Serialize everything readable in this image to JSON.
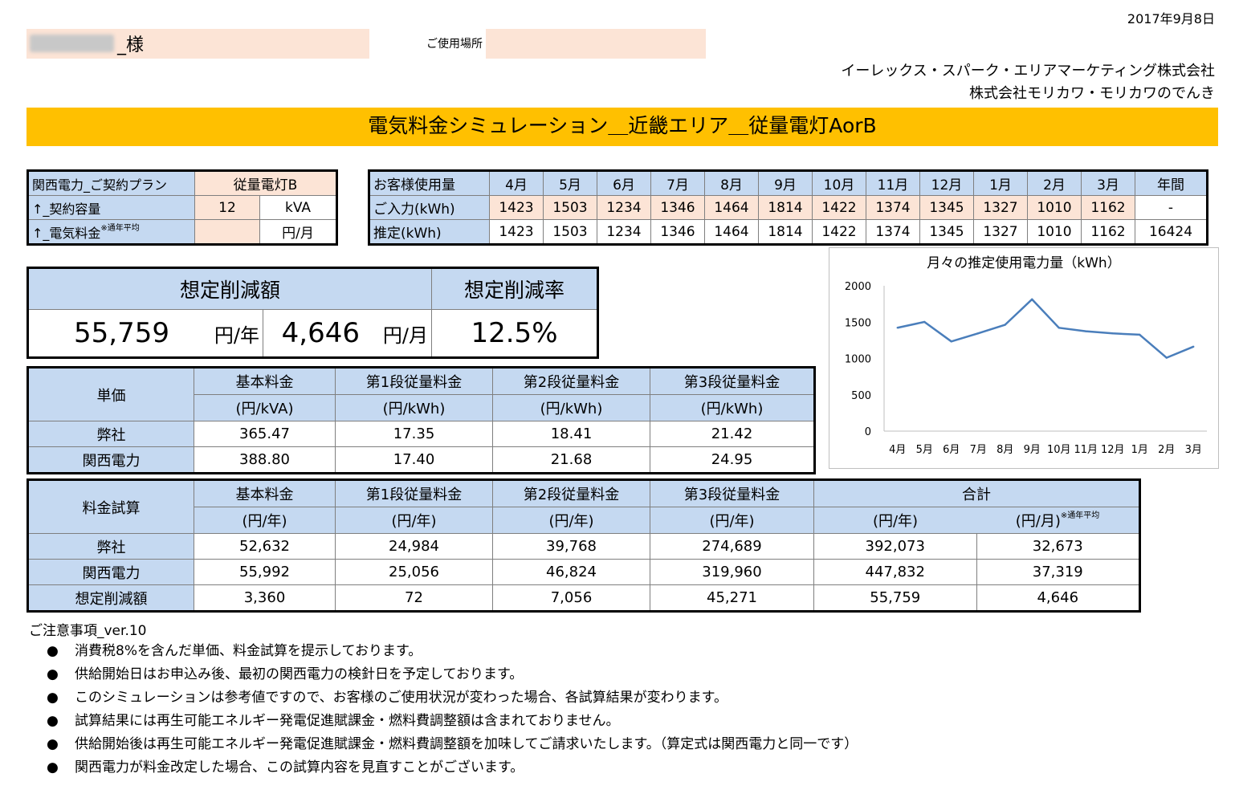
{
  "header": {
    "date": "2017年9月8日",
    "customer_suffix": "_様",
    "place_label": "ご使用場所",
    "company_1": "イーレックス・スパーク・エリアマーケティング株式会社",
    "company_2": "株式会社モリカワ・モリカワのでんき",
    "banner_title": "電気料金シミュレーション＿近畿エリア＿従量電灯AorB"
  },
  "plan": {
    "row1_label": "関西電力_ご契約プラン",
    "row1_value": "従量電灯B",
    "row2_label": "↑_契約容量",
    "row2_value": "12",
    "row2_unit": "kVA",
    "row3_label": "↑_電気料金",
    "row3_note": "※通年平均",
    "row3_unit": "円/月"
  },
  "usage": {
    "header_label": "お客様使用量",
    "months": [
      "4月",
      "5月",
      "6月",
      "7月",
      "8月",
      "9月",
      "10月",
      "11月",
      "12月",
      "1月",
      "2月",
      "3月"
    ],
    "annual_label": "年間",
    "input_label": "ご入力(kWh)",
    "input_values": [
      "1423",
      "1503",
      "1234",
      "1346",
      "1464",
      "1814",
      "1422",
      "1374",
      "1345",
      "1327",
      "1010",
      "1162"
    ],
    "input_annual": "-",
    "est_label": "推定(kWh)",
    "est_values": [
      "1423",
      "1503",
      "1234",
      "1346",
      "1464",
      "1814",
      "1422",
      "1374",
      "1345",
      "1327",
      "1010",
      "1162"
    ],
    "est_annual": "16424"
  },
  "savings": {
    "amount_header": "想定削減額",
    "rate_header": "想定削減率",
    "yearly": "55,759",
    "yearly_unit": "円/年",
    "monthly": "4,646",
    "monthly_unit": "円/月",
    "rate": "12.5%"
  },
  "unit_price": {
    "corner": "単価",
    "columns": [
      {
        "name": "基本料金",
        "unit": "(円/kVA)"
      },
      {
        "name": "第1段従量料金",
        "unit": "(円/kWh)"
      },
      {
        "name": "第2段従量料金",
        "unit": "(円/kWh)"
      },
      {
        "name": "第3段従量料金",
        "unit": "(円/kWh)"
      }
    ],
    "rows": [
      {
        "label": "弊社",
        "values": [
          "365.47",
          "17.35",
          "18.41",
          "21.42"
        ]
      },
      {
        "label": "関西電力",
        "values": [
          "388.80",
          "17.40",
          "21.68",
          "24.95"
        ]
      }
    ]
  },
  "calc": {
    "corner": "料金試算",
    "columns": [
      {
        "name": "基本料金",
        "unit": "(円/年)"
      },
      {
        "name": "第1段従量料金",
        "unit": "(円/年)"
      },
      {
        "name": "第2段従量料金",
        "unit": "(円/年)"
      },
      {
        "name": "第3段従量料金",
        "unit": "(円/年)"
      }
    ],
    "total_label": "合計",
    "total_unit_year": "(円/年)",
    "total_unit_month": "(円/月)",
    "total_note": "※通年平均",
    "rows": [
      {
        "label": "弊社",
        "values": [
          "52,632",
          "24,984",
          "39,768",
          "274,689",
          "392,073",
          "32,673"
        ]
      },
      {
        "label": "関西電力",
        "values": [
          "55,992",
          "25,056",
          "46,824",
          "319,960",
          "447,832",
          "37,319"
        ]
      },
      {
        "label": "想定削減額",
        "values": [
          "3,360",
          "72",
          "7,056",
          "45,271",
          "55,759",
          "4,646"
        ]
      }
    ]
  },
  "notes": {
    "title": "ご注意事項_ver.10",
    "bullet": "●",
    "items": [
      "消費税8%を含んだ単価、料金試算を提示しております。",
      "供給開始日はお申込み後、最初の関西電力の検針日を予定しております。",
      "このシミュレーションは参考値ですので、お客様のご使用状況が変わった場合、各試算結果が変わります。",
      "試算結果には再生可能エネルギー発電促進賦課金・燃料費調整額は含まれておりません。",
      "供給開始後は再生可能エネルギー発電促進賦課金・燃料費調整額を加味してご請求いたします。（算定式は関西電力と同一です）",
      "関西電力が料金改定した場合、この試算内容を見直すことがございます。"
    ]
  },
  "chart_data": {
    "type": "line",
    "title": "月々の推定使用電力量（kWh）",
    "categories": [
      "4月",
      "5月",
      "6月",
      "7月",
      "8月",
      "9月",
      "10月",
      "11月",
      "12月",
      "1月",
      "2月",
      "3月"
    ],
    "values": [
      1423,
      1503,
      1234,
      1346,
      1464,
      1814,
      1422,
      1374,
      1345,
      1327,
      1010,
      1162
    ],
    "yticks": [
      "0",
      "500",
      "1000",
      "1500",
      "2000"
    ],
    "ylim": [
      0,
      2000
    ],
    "grid": false,
    "line_color": "#4a7ebb"
  }
}
